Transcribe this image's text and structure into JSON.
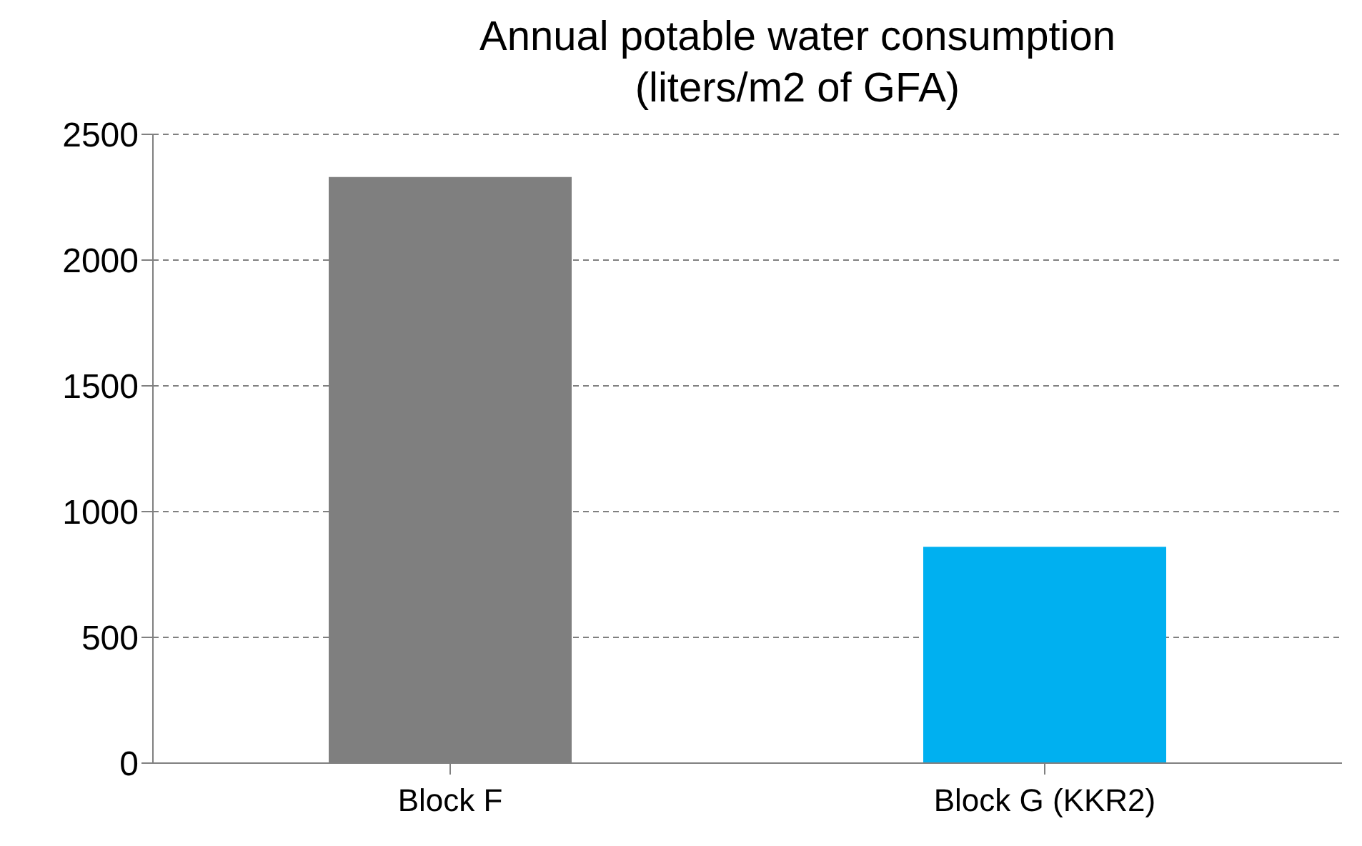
{
  "chart_data": {
    "type": "bar",
    "title": "Annual potable water consumption\n(liters/m2 of GFA)",
    "categories": [
      "Block F",
      "Block G (KKR2)"
    ],
    "values": [
      2330,
      860
    ],
    "colors": [
      "#7f7f7f",
      "#00b0f0"
    ],
    "ylim": [
      0,
      2500
    ],
    "yticks": [
      0,
      500,
      1000,
      1500,
      2000,
      2500
    ],
    "grid": "y"
  }
}
